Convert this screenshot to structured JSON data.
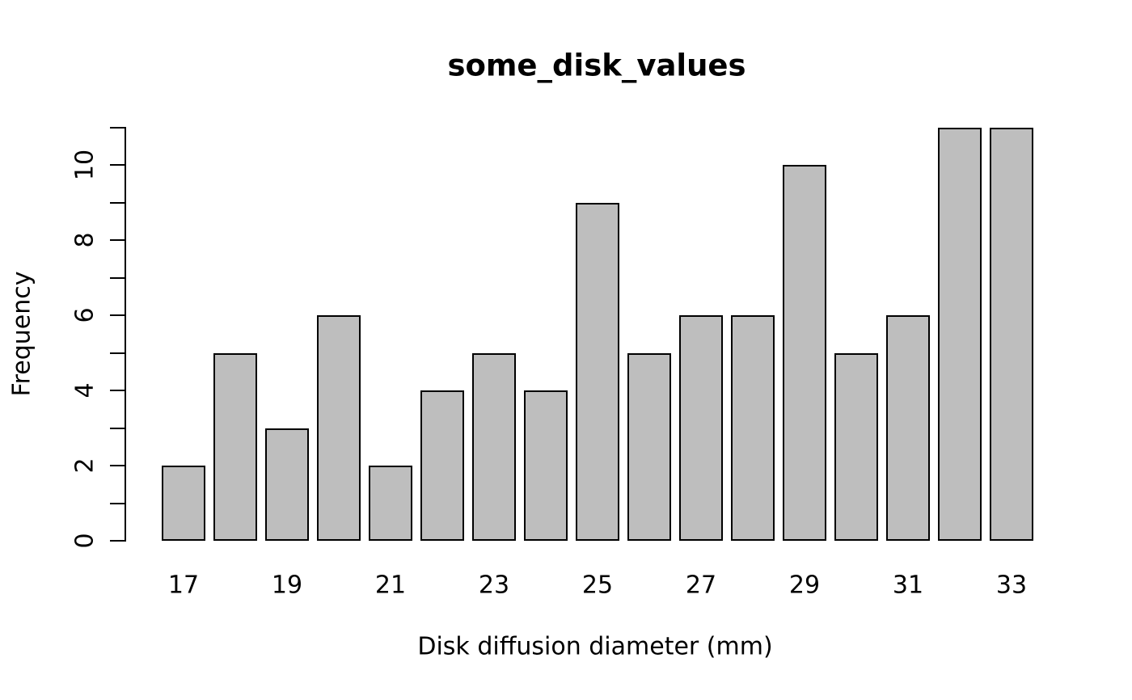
{
  "figure": {
    "title": "some_disk_values",
    "xlabel": "Disk diffusion diameter (mm)",
    "ylabel": "Frequency"
  },
  "chart_data": {
    "type": "bar",
    "title": "some_disk_values",
    "xlabel": "Disk diffusion diameter (mm)",
    "ylabel": "Frequency",
    "categories": [
      "17",
      "18",
      "19",
      "20",
      "21",
      "22",
      "23",
      "24",
      "25",
      "26",
      "27",
      "28",
      "29",
      "30",
      "31",
      "32",
      "33"
    ],
    "values": [
      2,
      5,
      3,
      6,
      2,
      4,
      5,
      4,
      9,
      5,
      6,
      6,
      10,
      5,
      6,
      11,
      11
    ],
    "x_tick_labels_shown": [
      "17",
      "19",
      "21",
      "23",
      "25",
      "27",
      "29",
      "31",
      "33"
    ],
    "y_ticks": [
      0,
      1,
      2,
      3,
      4,
      5,
      6,
      7,
      8,
      9,
      10,
      11
    ],
    "y_labeled_ticks": [
      0,
      2,
      4,
      6,
      8,
      10
    ],
    "ylim": [
      0,
      11
    ],
    "grid": false,
    "legend": null,
    "layout_hints": {
      "x_axis_line": false,
      "y_axis_line": true,
      "y_tick_label_rotation_deg": -90,
      "bar_gap_ratio": 0.2
    },
    "colors": {
      "bar_fill": "#bebebe",
      "bar_border": "#000000",
      "axis": "#000000",
      "text": "#000000",
      "background": "#ffffff"
    }
  }
}
